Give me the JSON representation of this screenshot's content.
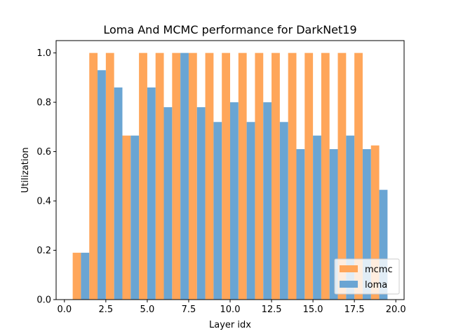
{
  "chart_data": {
    "type": "bar",
    "title": "Loma And MCMC performance for DarkNet19",
    "xlabel": "Layer idx",
    "ylabel": "Utilization",
    "xlim": [
      -0.5,
      20.5
    ],
    "ylim": [
      0,
      1.05
    ],
    "x_ticks": [
      0.0,
      2.5,
      5.0,
      7.5,
      10.0,
      12.5,
      15.0,
      17.5,
      20.0
    ],
    "x_tick_labels": [
      "0.0",
      "2.5",
      "5.0",
      "7.5",
      "10.0",
      "12.5",
      "15.0",
      "17.5",
      "20.0"
    ],
    "y_ticks": [
      0.0,
      0.2,
      0.4,
      0.6,
      0.8,
      1.0
    ],
    "y_tick_labels": [
      "0.0",
      "0.2",
      "0.4",
      "0.6",
      "0.8",
      "1.0"
    ],
    "legend_position": "lower-right",
    "series": [
      {
        "name": "mcmc",
        "color": "#ffa65a",
        "x_start": [
          0.5,
          1.5,
          2.5,
          3.5,
          4.5,
          5.5,
          6.5,
          7.5,
          8.5,
          9.5,
          10.5,
          11.5,
          12.5,
          13.5,
          14.5,
          15.5,
          16.5,
          17.5,
          18.5
        ],
        "values": [
          0.19,
          1.0,
          1.0,
          0.665,
          1.0,
          1.0,
          1.0,
          1.0,
          1.0,
          1.0,
          1.0,
          1.0,
          1.0,
          1.0,
          1.0,
          1.0,
          1.0,
          1.0,
          0.625
        ]
      },
      {
        "name": "loma",
        "color": "#6aa5d3",
        "x_start": [
          1.0,
          2.0,
          3.0,
          4.0,
          5.0,
          6.0,
          7.0,
          8.0,
          9.0,
          10.0,
          11.0,
          12.0,
          13.0,
          14.0,
          15.0,
          16.0,
          17.0,
          18.0,
          19.0
        ],
        "values": [
          0.19,
          0.93,
          0.86,
          0.665,
          0.86,
          0.78,
          1.0,
          0.78,
          0.72,
          0.8,
          0.72,
          0.8,
          0.72,
          0.61,
          0.665,
          0.61,
          0.665,
          0.61,
          0.445
        ]
      }
    ]
  }
}
